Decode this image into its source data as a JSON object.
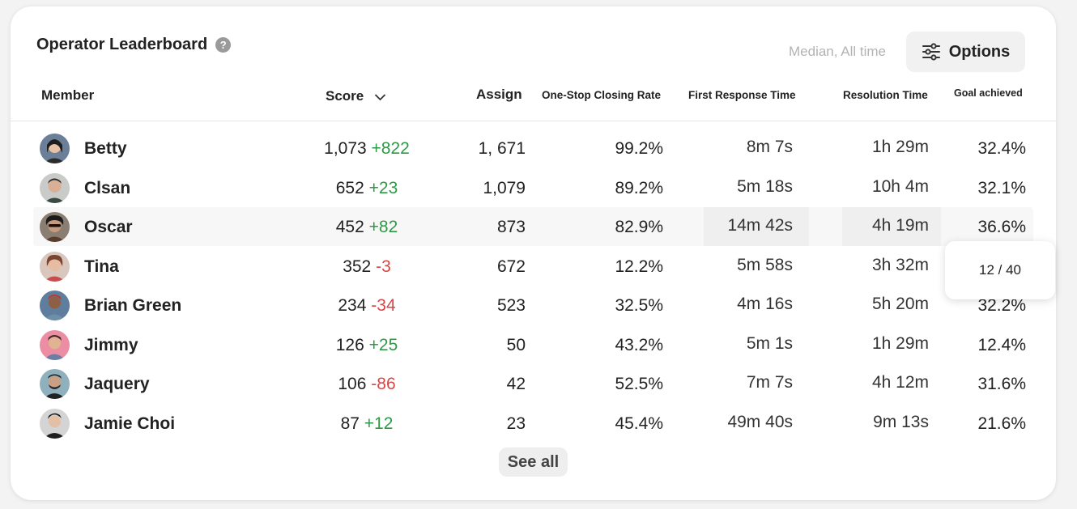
{
  "header": {
    "title": "Operator Leaderboard",
    "help_icon": "question-icon",
    "filter_text": "Median, All time",
    "options_label": "Options",
    "options_icon": "sliders-icon"
  },
  "columns": {
    "member": "Member",
    "score": "Score",
    "assign": "Assign",
    "one_stop": "One-Stop Closing Rate",
    "first_response": "First Response Time",
    "resolution": "Resolution Time",
    "goal": "Goal achieved"
  },
  "rows": [
    {
      "name": "Betty",
      "score": "1,073",
      "delta": "+822",
      "trend": "pos",
      "assign": "1, 671",
      "one_stop": "99.2%",
      "first_response": "8m 7s",
      "resolution": "1h 29m",
      "goal": "32.4%"
    },
    {
      "name": "Clsan",
      "score": "652",
      "delta": "+23",
      "trend": "pos",
      "assign": "1,079",
      "one_stop": "89.2%",
      "first_response": "5m 18s",
      "resolution": "10h 4m",
      "goal": "32.1%"
    },
    {
      "name": "Oscar",
      "score": "452",
      "delta": "+82",
      "trend": "pos",
      "assign": "873",
      "one_stop": "82.9%",
      "first_response": "14m 42s",
      "resolution": "4h 19m",
      "goal": "36.6%"
    },
    {
      "name": "Tina",
      "score": "352",
      "delta": "-3",
      "trend": "neg",
      "assign": "672",
      "one_stop": "12.2%",
      "first_response": "5m 58s",
      "resolution": "3h 32m",
      "goal": ""
    },
    {
      "name": "Brian Green",
      "score": "234",
      "delta": "-34",
      "trend": "neg",
      "assign": "523",
      "one_stop": "32.5%",
      "first_response": "4m 16s",
      "resolution": "5h 20m",
      "goal": "32.2%"
    },
    {
      "name": "Jimmy",
      "score": "126",
      "delta": "+25",
      "trend": "pos",
      "assign": "50",
      "one_stop": "43.2%",
      "first_response": "5m 1s",
      "resolution": "1h 29m",
      "goal": "12.4%"
    },
    {
      "name": "Jaquery",
      "score": "106",
      "delta": "-86",
      "trend": "neg",
      "assign": "42",
      "one_stop": "52.5%",
      "first_response": "7m 7s",
      "resolution": "4h 12m",
      "goal": "31.6%"
    },
    {
      "name": "Jamie Choi",
      "score": "87",
      "delta": "+12",
      "trend": "pos",
      "assign": "23",
      "one_stop": "45.4%",
      "first_response": "49m 40s",
      "resolution": "9m 13s",
      "goal": "21.6%"
    }
  ],
  "tooltip": {
    "text": "12 / 40"
  },
  "footer": {
    "see_all_label": "See all"
  },
  "colors": {
    "positive": "#2e9a45",
    "negative": "#d94646",
    "accent_bg": "#f1f1f1"
  }
}
